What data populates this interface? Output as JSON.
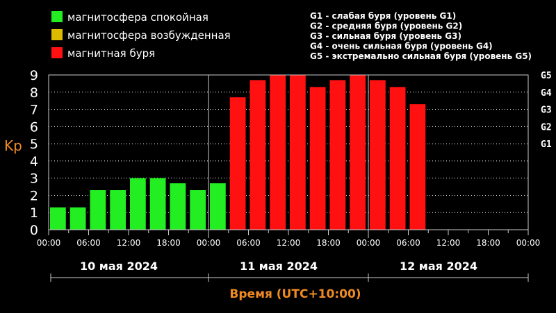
{
  "legend": {
    "items": [
      {
        "label": "магнитосфера спокойная",
        "color": "#22ee22"
      },
      {
        "label": "магнитосфера возбужденная",
        "color": "#ddbb00"
      },
      {
        "label": "магнитная буря",
        "color": "#ff1111"
      }
    ],
    "storm_levels": [
      "G1 - слабая буря (уровень G1)",
      "G2 - средняя буря (уровень G2)",
      "G3 - сильная буря (уровень G3)",
      "G4 - очень сильная буря (уровень G4)",
      "G5 - экстремально сильная буря (уровень G5)"
    ]
  },
  "chart_data": {
    "type": "bar",
    "ylabel": "Kp",
    "xlabel": "Время (UTC+10:00)",
    "ylim": [
      0,
      9
    ],
    "yticks": [
      "0",
      "1",
      "2",
      "3",
      "4",
      "5",
      "6",
      "7",
      "8",
      "9"
    ],
    "g_levels": [
      {
        "label": "G1",
        "value": 5
      },
      {
        "label": "G2",
        "value": 6
      },
      {
        "label": "G3",
        "value": 7
      },
      {
        "label": "G4",
        "value": 8
      },
      {
        "label": "G5",
        "value": 9
      }
    ],
    "xticks": [
      "00:00",
      "06:00",
      "12:00",
      "18:00",
      "00:00",
      "06:00",
      "12:00",
      "18:00",
      "00:00",
      "06:00",
      "12:00",
      "18:00",
      "00:00"
    ],
    "days": [
      "10 мая 2024",
      "11 мая 2024",
      "12 мая 2024"
    ],
    "x_hours_total": 72,
    "bar_interval_hours": 3,
    "values": [
      1.3,
      1.3,
      2.3,
      2.3,
      3.0,
      3.0,
      2.7,
      2.3,
      2.7,
      7.7,
      8.7,
      9.0,
      9.0,
      8.3,
      8.7,
      9.0,
      8.7,
      8.3,
      7.3
    ],
    "colors": {
      "calm": "#22ee22",
      "storm": "#ff1111"
    },
    "storm_threshold": 5,
    "grid": true
  }
}
